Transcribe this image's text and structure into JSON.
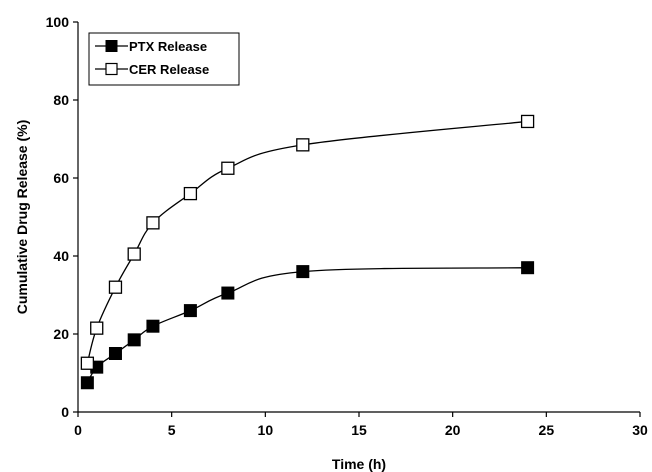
{
  "chart_data": {
    "type": "line",
    "title": "",
    "xlabel": "Time (h)",
    "ylabel": "Cumulative Drug Release (%)",
    "xlim": [
      0,
      30
    ],
    "ylim": [
      0,
      100
    ],
    "x_ticks": [
      0,
      5,
      10,
      15,
      20,
      25,
      30
    ],
    "y_ticks": [
      0,
      20,
      40,
      60,
      80,
      100
    ],
    "grid": false,
    "legend_position": "top-left",
    "series": [
      {
        "name": "PTX Release",
        "marker": "filled-square",
        "color": "#000000",
        "x": [
          0.5,
          1,
          2,
          3,
          4,
          6,
          8,
          12,
          24
        ],
        "y": [
          7.5,
          11.5,
          15,
          18.5,
          22,
          26,
          30.5,
          36,
          37
        ]
      },
      {
        "name": "CER Release",
        "marker": "open-square",
        "color": "#000000",
        "x": [
          0.5,
          1,
          2,
          3,
          4,
          6,
          8,
          12,
          24
        ],
        "y": [
          12.5,
          21.5,
          32,
          40.5,
          48.5,
          56,
          62.5,
          68.5,
          74.5
        ]
      }
    ]
  }
}
